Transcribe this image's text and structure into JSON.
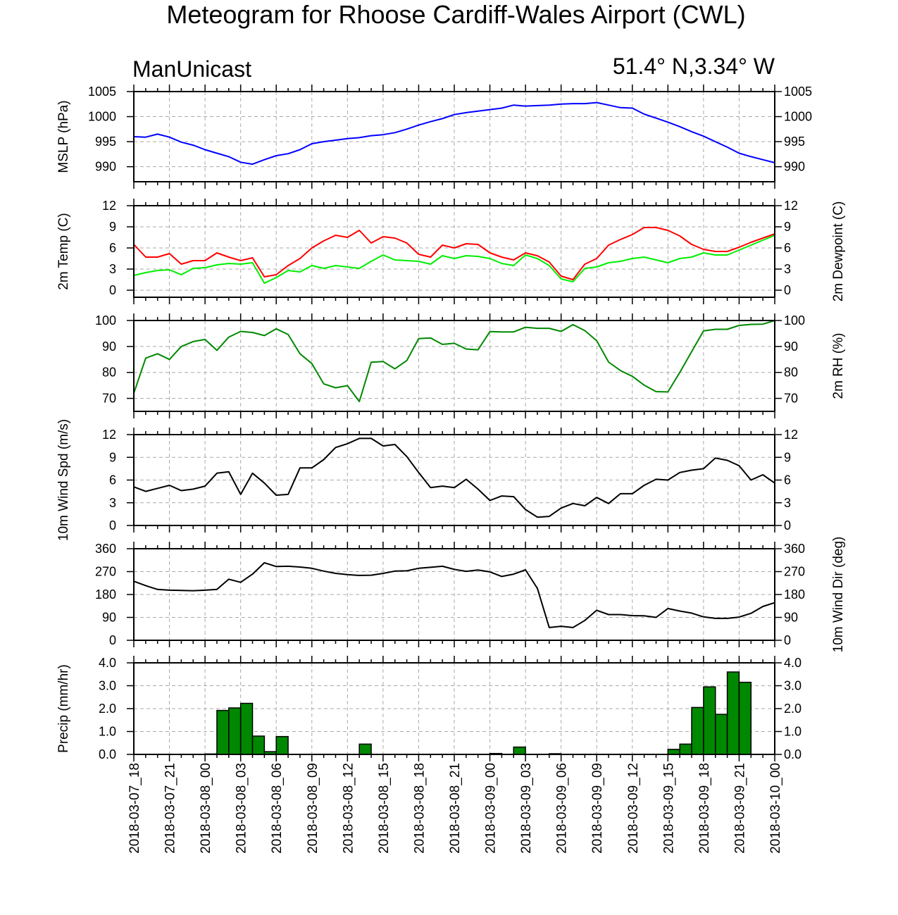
{
  "header": {
    "title": "Meteogram for Rhoose Cardiff-Wales Airport (CWL)",
    "left_label": "ManUnicast",
    "right_label": "51.4° N,3.34° W"
  },
  "chart_data": {
    "type": "line",
    "x_tick_labels": [
      "2018-03-07_18",
      "2018-03-07_21",
      "2018-03-08_00",
      "2018-03-08_03",
      "2018-03-08_06",
      "2018-03-08_09",
      "2018-03-08_12",
      "2018-03-08_15",
      "2018-03-08_18",
      "2018-03-08_21",
      "2018-03-09_00",
      "2018-03-09_03",
      "2018-03-09_06",
      "2018-03-09_09",
      "2018-03-09_12",
      "2018-03-09_15",
      "2018-03-09_18",
      "2018-03-09_21",
      "2018-03-10_00"
    ],
    "x_unit": "hours since 2018-03-07_18",
    "x_range": [
      0,
      54
    ],
    "grid": true,
    "panels": [
      {
        "id": "mslp",
        "ylabel_left": "MSLP (hPa)",
        "ylabel_right": "",
        "ylim": [
          987,
          1005
        ],
        "yticks": [
          990,
          995,
          1000,
          1005
        ],
        "series": [
          {
            "color": "#0000ff",
            "x": [
              0,
              1,
              2,
              3,
              4,
              5,
              6,
              7,
              8,
              9,
              10,
              11,
              12,
              13,
              14,
              15,
              16,
              17,
              18,
              19,
              20,
              21,
              22,
              23,
              24,
              25,
              26,
              27,
              28,
              29,
              30,
              31,
              32,
              33,
              34,
              35,
              36,
              37,
              38,
              39,
              40,
              41,
              42,
              43,
              44,
              45,
              46,
              47,
              48,
              49,
              50,
              51,
              52,
              53,
              54
            ],
            "values": [
              996.0,
              995.9,
              996.5,
              995.9,
              994.9,
              994.3,
              993.4,
              992.7,
              992.0,
              990.9,
              990.5,
              991.4,
              992.2,
              992.6,
              993.4,
              994.6,
              995.0,
              995.3,
              995.6,
              995.8,
              996.2,
              996.4,
              996.8,
              997.5,
              998.3,
              999.0,
              999.6,
              1000.4,
              1000.8,
              1001.1,
              1001.4,
              1001.7,
              1002.3,
              1002.1,
              1002.2,
              1002.3,
              1002.5,
              1002.6,
              1002.6,
              1002.8,
              1002.3,
              1001.8,
              1001.7,
              1000.5,
              999.7,
              998.9,
              998.0,
              997.0,
              996.1,
              995.0,
              993.9,
              992.7,
              992.0,
              991.4,
              990.8
            ]
          }
        ]
      },
      {
        "id": "temp",
        "ylabel_left": "2m Temp (C)",
        "ylabel_right": "2m Dewpoint (C)",
        "ylim": [
          -1,
          12
        ],
        "yticks": [
          0,
          3,
          6,
          9,
          12
        ],
        "series": [
          {
            "color": "#ff0000",
            "x": [
              0,
              1,
              2,
              3,
              4,
              5,
              6,
              7,
              8,
              9,
              10,
              11,
              12,
              13,
              14,
              15,
              16,
              17,
              18,
              19,
              20,
              21,
              22,
              23,
              24,
              25,
              26,
              27,
              28,
              29,
              30,
              31,
              32,
              33,
              34,
              35,
              36,
              37,
              38,
              39,
              40,
              41,
              42,
              43,
              44,
              45,
              46,
              47,
              48,
              49,
              50,
              51,
              52,
              53,
              54
            ],
            "values": [
              6.5,
              4.7,
              4.7,
              5.2,
              3.7,
              4.2,
              4.2,
              5.3,
              4.7,
              4.2,
              4.6,
              1.9,
              2.2,
              3.5,
              4.5,
              6.0,
              7.0,
              7.8,
              7.5,
              8.5,
              6.7,
              7.6,
              7.4,
              6.7,
              5.1,
              4.7,
              6.4,
              6.0,
              6.6,
              6.5,
              5.3,
              4.7,
              4.3,
              5.3,
              4.9,
              4.0,
              2.0,
              1.5,
              3.7,
              4.5,
              6.4,
              7.2,
              7.9,
              8.9,
              8.9,
              8.5,
              7.7,
              6.5,
              5.8,
              5.5,
              5.5,
              6.1,
              6.8,
              7.4,
              8.0
            ]
          },
          {
            "color": "#00ee00",
            "x": [
              0,
              1,
              2,
              3,
              4,
              5,
              6,
              7,
              8,
              9,
              10,
              11,
              12,
              13,
              14,
              15,
              16,
              17,
              18,
              19,
              20,
              21,
              22,
              23,
              24,
              25,
              26,
              27,
              28,
              29,
              30,
              31,
              32,
              33,
              34,
              35,
              36,
              37,
              38,
              39,
              40,
              41,
              42,
              43,
              44,
              45,
              46,
              47,
              48,
              49,
              50,
              51,
              52,
              53,
              54
            ],
            "values": [
              2.1,
              2.5,
              2.8,
              2.9,
              2.2,
              3.1,
              3.2,
              3.6,
              3.8,
              3.7,
              3.9,
              1.0,
              1.8,
              2.8,
              2.6,
              3.5,
              3.1,
              3.5,
              3.3,
              3.1,
              4.1,
              5.0,
              4.3,
              4.2,
              4.1,
              3.7,
              4.9,
              4.5,
              4.9,
              4.8,
              4.5,
              3.8,
              3.5,
              5.0,
              4.5,
              3.5,
              1.6,
              1.2,
              3.1,
              3.3,
              3.9,
              4.1,
              4.5,
              4.7,
              4.3,
              3.9,
              4.5,
              4.7,
              5.3,
              5.0,
              5.0,
              5.7,
              6.4,
              7.1,
              7.8
            ]
          }
        ]
      },
      {
        "id": "rh",
        "ylabel_left": "",
        "ylabel_right": "2m RH (%)",
        "ylim": [
          65,
          100
        ],
        "yticks": [
          70,
          80,
          90,
          100
        ],
        "series": [
          {
            "color": "#008800",
            "x": [
              0,
              1,
              2,
              3,
              4,
              5,
              6,
              7,
              8,
              9,
              10,
              11,
              12,
              13,
              14,
              15,
              16,
              17,
              18,
              19,
              20,
              21,
              22,
              23,
              24,
              25,
              26,
              27,
              28,
              29,
              30,
              31,
              32,
              33,
              34,
              35,
              36,
              37,
              38,
              39,
              40,
              41,
              42,
              43,
              44,
              45,
              46,
              47,
              48,
              49,
              50,
              51,
              52,
              53,
              54
            ],
            "values": [
              72,
              85.5,
              87.2,
              85,
              90,
              91.9,
              92.7,
              88.5,
              93.6,
              95.8,
              95.4,
              94.2,
              96.8,
              94.6,
              87.2,
              83.4,
              75.6,
              74.1,
              74.9,
              68.8,
              83.9,
              84.2,
              81.4,
              84.6,
              93,
              93.3,
              90.8,
              91.2,
              89,
              88.7,
              95.7,
              95.6,
              95.6,
              97.4,
              97,
              97,
              95.8,
              98.4,
              96.1,
              92.2,
              84,
              80.7,
              78.5,
              75.1,
              72.6,
              72.5,
              80,
              88,
              96,
              96.6,
              96.6,
              98.1,
              98.5,
              98.6,
              100
            ]
          }
        ]
      },
      {
        "id": "wspd",
        "ylabel_left": "10m Wind Spd (m/s)",
        "ylabel_right": "",
        "ylim": [
          0,
          12
        ],
        "yticks": [
          0,
          3,
          6,
          9,
          12
        ],
        "series": [
          {
            "color": "#000000",
            "x": [
              0,
              1,
              2,
              3,
              4,
              5,
              6,
              7,
              8,
              9,
              10,
              11,
              12,
              13,
              14,
              15,
              16,
              17,
              18,
              19,
              20,
              21,
              22,
              23,
              24,
              25,
              26,
              27,
              28,
              29,
              30,
              31,
              32,
              33,
              34,
              35,
              36,
              37,
              38,
              39,
              40,
              41,
              42,
              43,
              44,
              45,
              46,
              47,
              48,
              49,
              50,
              51,
              52,
              53,
              54
            ],
            "values": [
              5.1,
              4.5,
              4.9,
              5.3,
              4.6,
              4.8,
              5.2,
              6.9,
              7.1,
              4.1,
              6.9,
              5.6,
              4.0,
              4.1,
              7.6,
              7.6,
              8.7,
              10.3,
              10.8,
              11.5,
              11.5,
              10.5,
              10.7,
              9.1,
              7.0,
              5.0,
              5.2,
              5.0,
              6.1,
              4.8,
              3.3,
              3.9,
              3.8,
              2.1,
              1.1,
              1.2,
              2.3,
              2.9,
              2.6,
              3.7,
              2.9,
              4.2,
              4.2,
              5.3,
              6.1,
              6.0,
              7.0,
              7.3,
              7.5,
              8.9,
              8.6,
              7.9,
              6.0,
              6.7,
              5.6
            ]
          }
        ]
      },
      {
        "id": "wdir",
        "ylabel_left": "",
        "ylabel_right": "10m Wind Dir (deg)",
        "ylim": [
          0,
          360
        ],
        "yticks": [
          0,
          90,
          180,
          270,
          360
        ],
        "series": [
          {
            "color": "#000000",
            "x": [
              0,
              1,
              2,
              3,
              4,
              5,
              6,
              7,
              8,
              9,
              10,
              11,
              12,
              13,
              14,
              15,
              16,
              17,
              18,
              19,
              20,
              21,
              22,
              23,
              24,
              25,
              26,
              27,
              28,
              29,
              30,
              31,
              32,
              33,
              34,
              35,
              36,
              37,
              38,
              39,
              40,
              41,
              42,
              43,
              44,
              45,
              46,
              47,
              48,
              49,
              50,
              51,
              52,
              53,
              54
            ],
            "values": [
              232,
              215,
              200,
              197,
              196,
              195,
              197,
              200,
              240,
              228,
              260,
              305,
              290,
              291,
              288,
              283,
              272,
              263,
              258,
              255,
              256,
              263,
              272,
              273,
              283,
              287,
              291,
              279,
              271,
              276,
              269,
              251,
              260,
              277,
              204,
              50,
              55,
              50,
              78,
              118,
              101,
              101,
              97,
              96,
              90,
              125,
              115,
              107,
              92,
              86,
              86,
              91,
              106,
              133,
              148
            ]
          }
        ]
      },
      {
        "id": "precip",
        "type": "bar",
        "ylabel_left": "Precip (mm/hr)",
        "ylabel_right": "",
        "ylim": [
          0,
          4.0
        ],
        "yticks": [
          0.0,
          1.0,
          2.0,
          3.0,
          4.0
        ],
        "ytick_labels": [
          "0.0",
          "1.0",
          "2.0",
          "3.0",
          "4.0"
        ],
        "bar_color": "#008800",
        "bars": {
          "x": [
            6,
            7,
            8,
            9,
            10,
            11,
            12,
            19,
            30,
            32,
            35,
            45,
            46,
            47,
            48,
            49,
            50,
            51
          ],
          "values": [
            0.02,
            1.92,
            2.03,
            2.23,
            0.8,
            0.12,
            0.78,
            0.45,
            0.04,
            0.32,
            0.03,
            0.22,
            0.45,
            2.05,
            2.95,
            1.75,
            3.6,
            3.15
          ]
        }
      }
    ]
  }
}
